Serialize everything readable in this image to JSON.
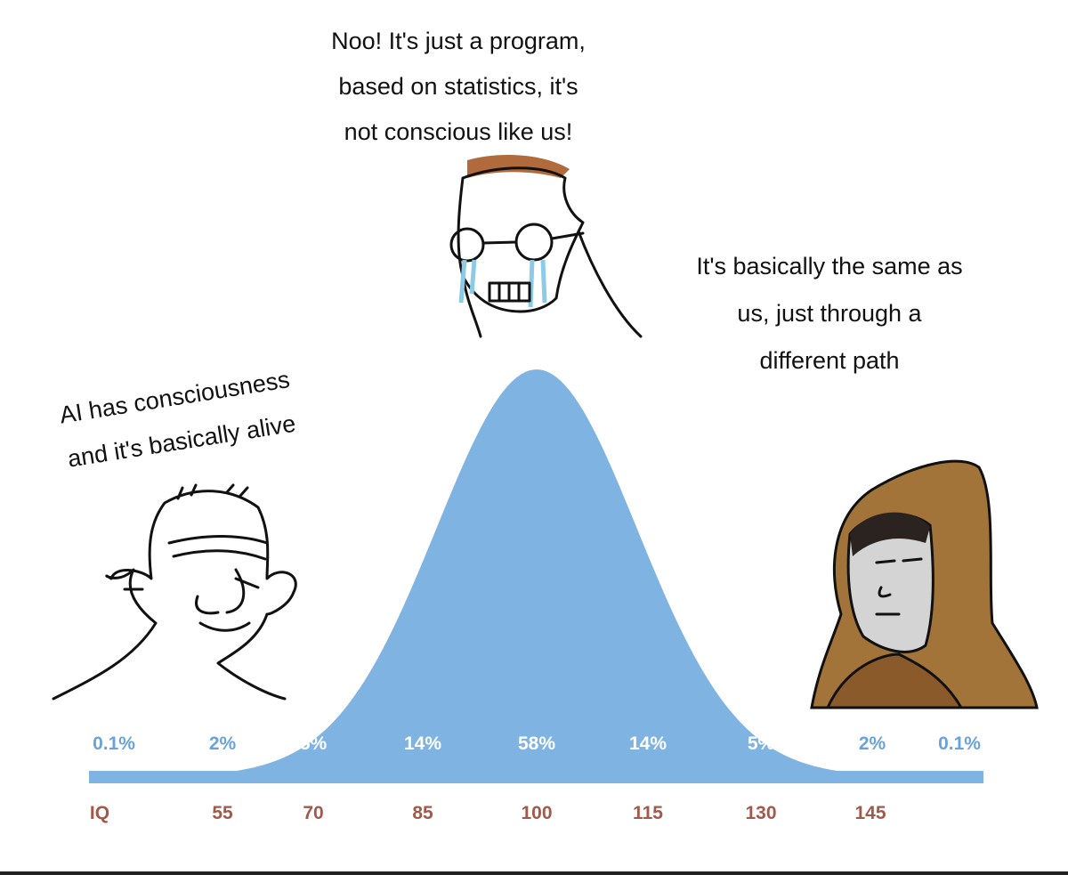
{
  "captions": {
    "top": [
      "Noo! It's just a program,",
      "based on statistics, it's",
      "not conscious like us!"
    ],
    "right": [
      "It's basically the same as",
      "us, just through a",
      "different path"
    ],
    "left": [
      "AI has consciousness",
      "and it's basically alive"
    ]
  },
  "percentages": [
    "0.1%",
    "2%",
    "5%",
    "14%",
    "58%",
    "14%",
    "5%",
    "2%",
    "0.1%"
  ],
  "iq_labels": [
    "IQ",
    "55",
    "70",
    "85",
    "100",
    "115",
    "130",
    "145"
  ]
}
